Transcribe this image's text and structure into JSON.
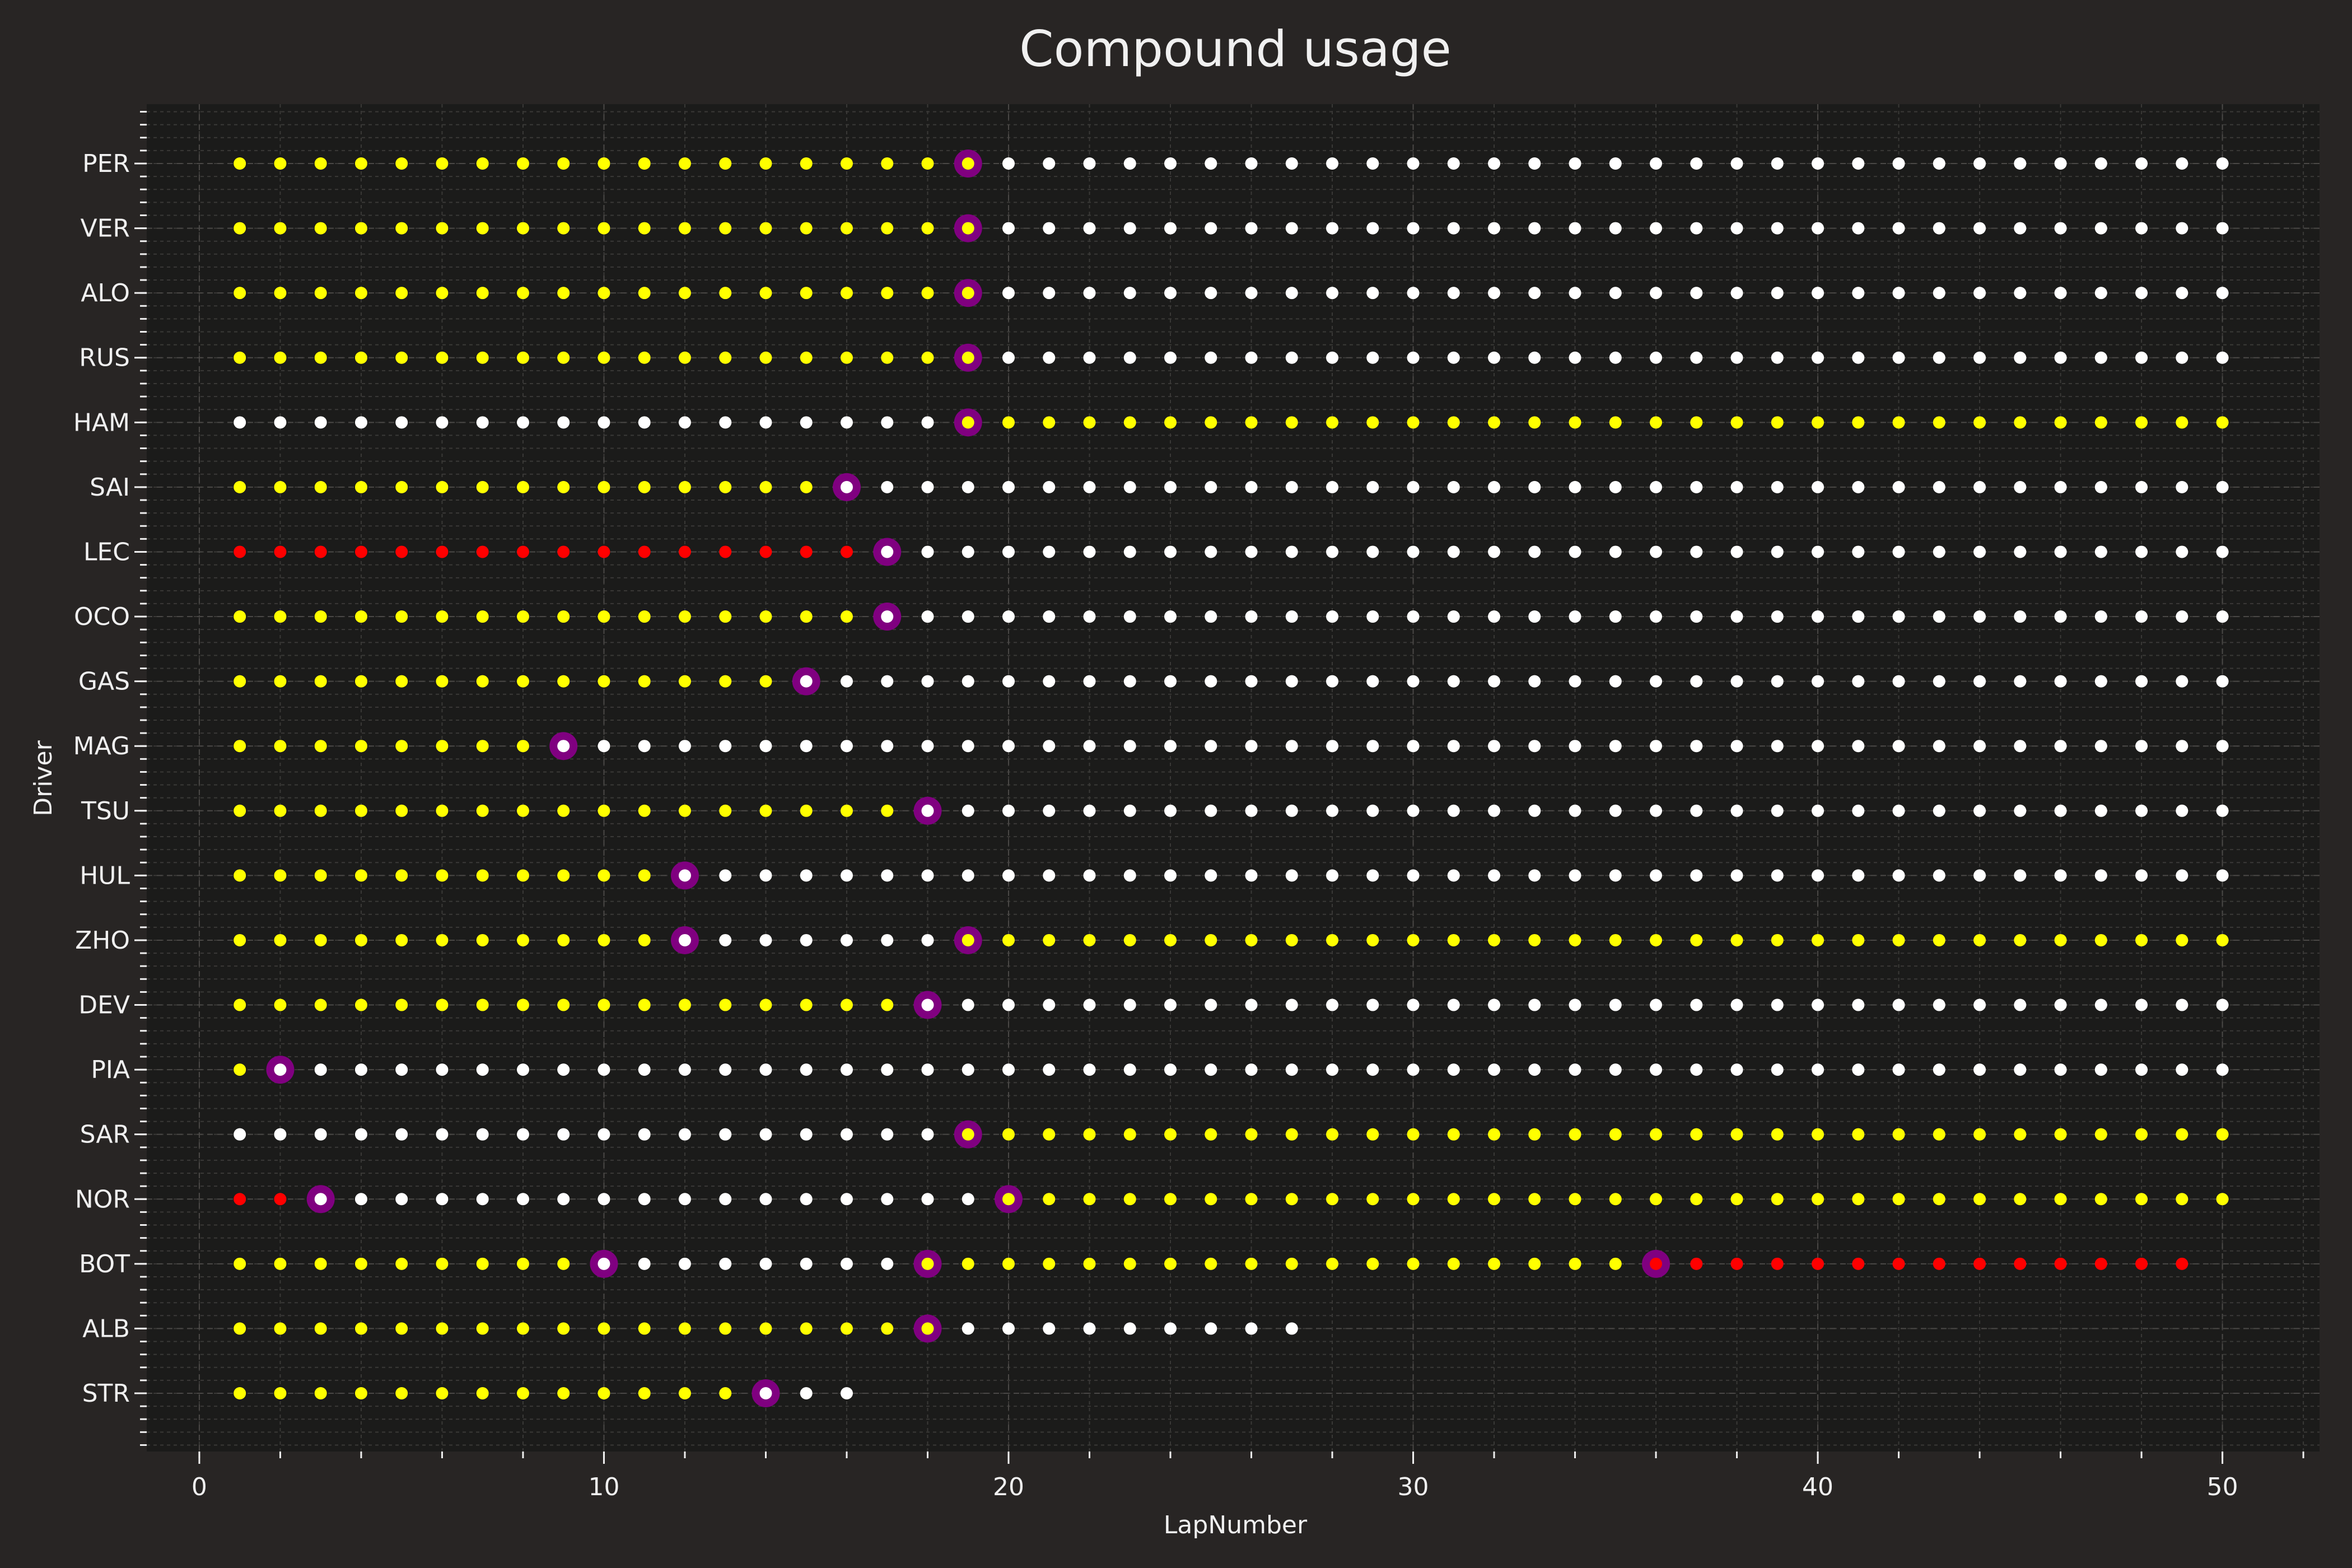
{
  "chart_data": {
    "type": "scatter",
    "title": "Compound usage",
    "xlabel": "LapNumber",
    "ylabel": "Driver",
    "xlim": [
      -1.3,
      52.4
    ],
    "xticks": [
      0,
      10,
      20,
      30,
      40,
      50
    ],
    "grid": true,
    "colors": {
      "background": "#282524",
      "plot_background": "#1b1b1a",
      "SOFT": "#ff0000",
      "MEDIUM": "#ffff00",
      "HARD": "#ffffff",
      "pit_stop": "#800080",
      "text": "#f0f0f0"
    },
    "drivers": [
      "PER",
      "VER",
      "ALO",
      "RUS",
      "HAM",
      "SAI",
      "LEC",
      "OCO",
      "GAS",
      "MAG",
      "TSU",
      "HUL",
      "ZHO",
      "DEV",
      "PIA",
      "SAR",
      "NOR",
      "BOT",
      "ALB",
      "STR"
    ],
    "series": [
      {
        "driver": "PER",
        "stints": [
          {
            "compound": "MEDIUM",
            "from": 1,
            "to": 19
          },
          {
            "compound": "HARD",
            "from": 20,
            "to": 50
          }
        ],
        "pit_laps": [
          19
        ]
      },
      {
        "driver": "VER",
        "stints": [
          {
            "compound": "MEDIUM",
            "from": 1,
            "to": 19
          },
          {
            "compound": "HARD",
            "from": 20,
            "to": 50
          }
        ],
        "pit_laps": [
          19
        ]
      },
      {
        "driver": "ALO",
        "stints": [
          {
            "compound": "MEDIUM",
            "from": 1,
            "to": 19
          },
          {
            "compound": "HARD",
            "from": 20,
            "to": 50
          }
        ],
        "pit_laps": [
          19
        ]
      },
      {
        "driver": "RUS",
        "stints": [
          {
            "compound": "MEDIUM",
            "from": 1,
            "to": 19
          },
          {
            "compound": "HARD",
            "from": 20,
            "to": 50
          }
        ],
        "pit_laps": [
          19
        ]
      },
      {
        "driver": "HAM",
        "stints": [
          {
            "compound": "HARD",
            "from": 1,
            "to": 18
          },
          {
            "compound": "MEDIUM",
            "from": 19,
            "to": 50
          }
        ],
        "pit_laps": [
          19
        ]
      },
      {
        "driver": "SAI",
        "stints": [
          {
            "compound": "MEDIUM",
            "from": 1,
            "to": 15
          },
          {
            "compound": "HARD",
            "from": 16,
            "to": 50
          }
        ],
        "pit_laps": [
          16
        ]
      },
      {
        "driver": "LEC",
        "stints": [
          {
            "compound": "SOFT",
            "from": 1,
            "to": 16
          },
          {
            "compound": "HARD",
            "from": 17,
            "to": 50
          }
        ],
        "pit_laps": [
          17
        ]
      },
      {
        "driver": "OCO",
        "stints": [
          {
            "compound": "MEDIUM",
            "from": 1,
            "to": 16
          },
          {
            "compound": "HARD",
            "from": 17,
            "to": 50
          }
        ],
        "pit_laps": [
          17
        ]
      },
      {
        "driver": "GAS",
        "stints": [
          {
            "compound": "MEDIUM",
            "from": 1,
            "to": 14
          },
          {
            "compound": "HARD",
            "from": 15,
            "to": 50
          }
        ],
        "pit_laps": [
          15
        ]
      },
      {
        "driver": "MAG",
        "stints": [
          {
            "compound": "MEDIUM",
            "from": 1,
            "to": 8
          },
          {
            "compound": "HARD",
            "from": 9,
            "to": 50
          }
        ],
        "pit_laps": [
          9
        ]
      },
      {
        "driver": "TSU",
        "stints": [
          {
            "compound": "MEDIUM",
            "from": 1,
            "to": 17
          },
          {
            "compound": "HARD",
            "from": 18,
            "to": 50
          }
        ],
        "pit_laps": [
          18
        ]
      },
      {
        "driver": "HUL",
        "stints": [
          {
            "compound": "MEDIUM",
            "from": 1,
            "to": 11
          },
          {
            "compound": "HARD",
            "from": 12,
            "to": 50
          }
        ],
        "pit_laps": [
          12
        ]
      },
      {
        "driver": "ZHO",
        "stints": [
          {
            "compound": "MEDIUM",
            "from": 1,
            "to": 11
          },
          {
            "compound": "HARD",
            "from": 12,
            "to": 18
          },
          {
            "compound": "MEDIUM",
            "from": 19,
            "to": 50
          }
        ],
        "pit_laps": [
          12,
          19
        ]
      },
      {
        "driver": "DEV",
        "stints": [
          {
            "compound": "MEDIUM",
            "from": 1,
            "to": 17
          },
          {
            "compound": "HARD",
            "from": 18,
            "to": 50
          }
        ],
        "pit_laps": [
          18
        ]
      },
      {
        "driver": "PIA",
        "stints": [
          {
            "compound": "MEDIUM",
            "from": 1,
            "to": 1
          },
          {
            "compound": "HARD",
            "from": 2,
            "to": 50
          }
        ],
        "pit_laps": [
          2
        ]
      },
      {
        "driver": "SAR",
        "stints": [
          {
            "compound": "HARD",
            "from": 1,
            "to": 18
          },
          {
            "compound": "MEDIUM",
            "from": 19,
            "to": 50
          }
        ],
        "pit_laps": [
          19
        ]
      },
      {
        "driver": "NOR",
        "stints": [
          {
            "compound": "SOFT",
            "from": 1,
            "to": 2
          },
          {
            "compound": "HARD",
            "from": 3,
            "to": 19
          },
          {
            "compound": "MEDIUM",
            "from": 20,
            "to": 50
          }
        ],
        "pit_laps": [
          3,
          20
        ]
      },
      {
        "driver": "BOT",
        "stints": [
          {
            "compound": "MEDIUM",
            "from": 1,
            "to": 9
          },
          {
            "compound": "HARD",
            "from": 10,
            "to": 17
          },
          {
            "compound": "MEDIUM",
            "from": 18,
            "to": 35
          },
          {
            "compound": "SOFT",
            "from": 36,
            "to": 49
          }
        ],
        "pit_laps": [
          10,
          18,
          36
        ]
      },
      {
        "driver": "ALB",
        "stints": [
          {
            "compound": "MEDIUM",
            "from": 1,
            "to": 18
          },
          {
            "compound": "HARD",
            "from": 19,
            "to": 27
          }
        ],
        "pit_laps": [
          18
        ]
      },
      {
        "driver": "STR",
        "stints": [
          {
            "compound": "MEDIUM",
            "from": 1,
            "to": 13
          },
          {
            "compound": "HARD",
            "from": 14,
            "to": 16
          }
        ],
        "pit_laps": [
          14
        ]
      }
    ]
  }
}
